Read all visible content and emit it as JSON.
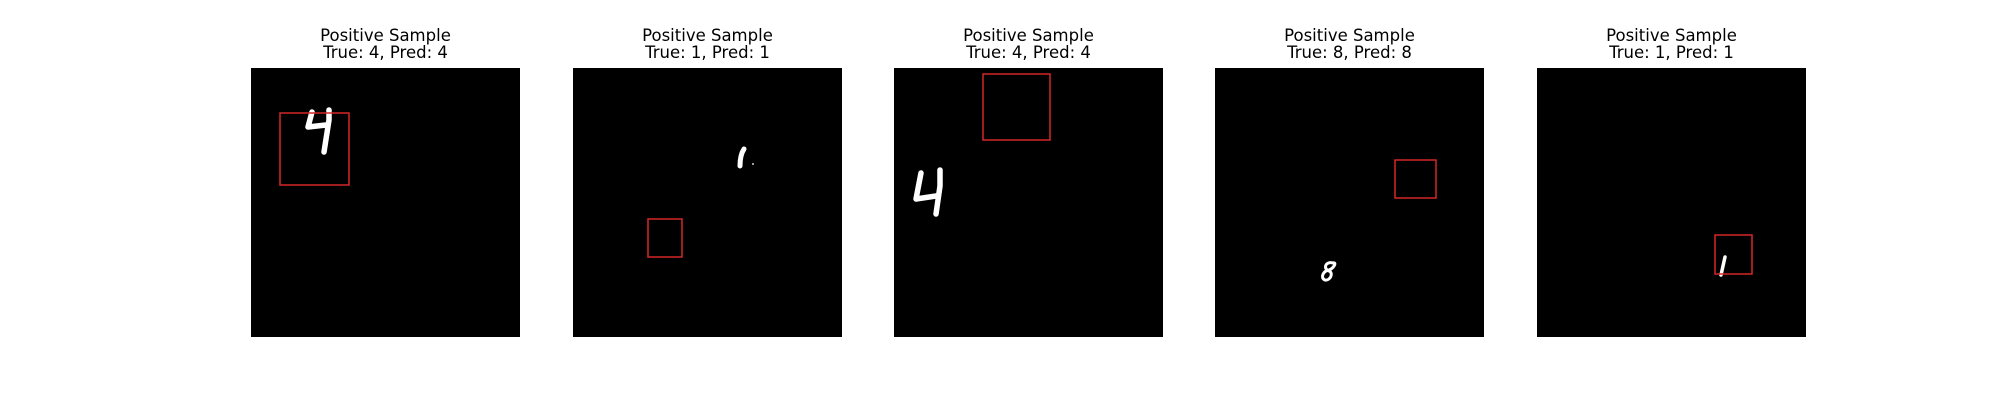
{
  "figure": {
    "background": "#ffffff",
    "image_background": "#000000",
    "box_color": "#d62728",
    "digit_color": "#ffffff"
  },
  "panels": [
    {
      "title": "Positive Sample",
      "subtitle": "True: 4, Pred: 4",
      "digit": "4",
      "true_label": 4,
      "pred_label": 4
    },
    {
      "title": "Positive Sample",
      "subtitle": "True: 1, Pred: 1",
      "digit": "1",
      "true_label": 1,
      "pred_label": 1
    },
    {
      "title": "Positive Sample",
      "subtitle": "True: 4, Pred: 4",
      "digit": "4",
      "true_label": 4,
      "pred_label": 4
    },
    {
      "title": "Positive Sample",
      "subtitle": "True: 8, Pred: 8",
      "digit": "8",
      "true_label": 8,
      "pred_label": 8
    },
    {
      "title": "Positive Sample",
      "subtitle": "True: 1, Pred: 1",
      "digit": "1",
      "true_label": 1,
      "pred_label": 1
    }
  ]
}
